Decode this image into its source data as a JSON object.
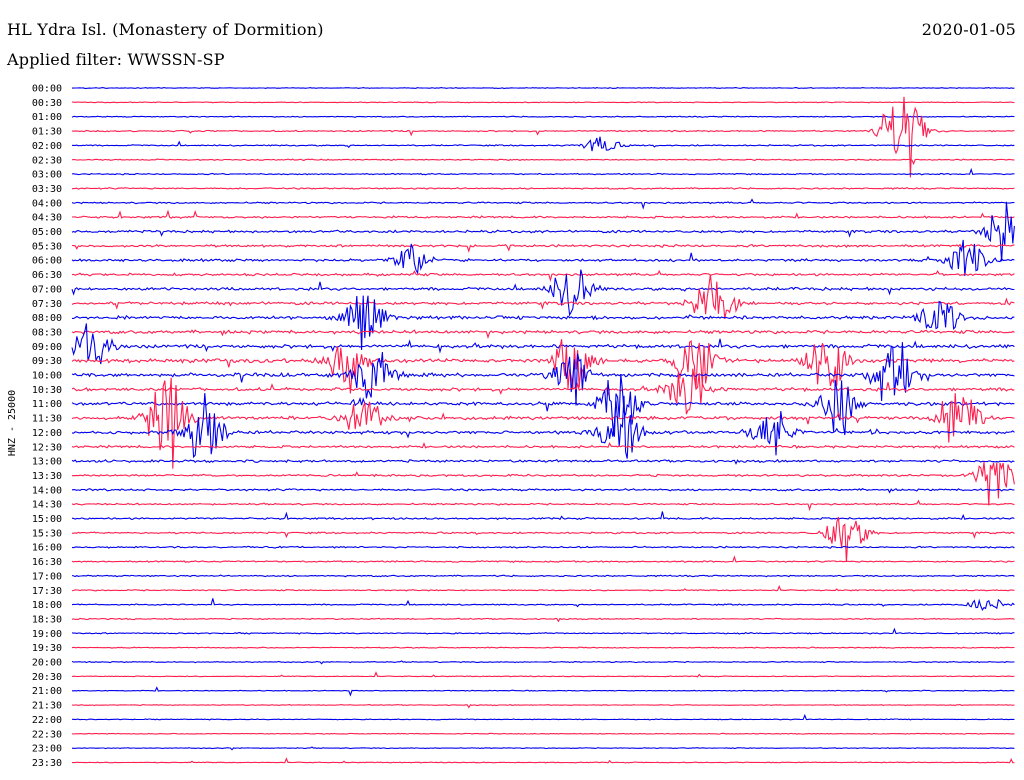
{
  "header": {
    "station": "HL Ydra Isl. (Monastery of Dormition)",
    "filter": "Applied filter: WWSSN-SP",
    "date": "2020-01-05"
  },
  "chart_data": {
    "type": "line",
    "title": "HL Ydra Isl. (Monastery of Dormition)",
    "subtitle": "Applied filter: WWSSN-SP",
    "date": "2020-01-05",
    "ylabel": "HNZ - 25000",
    "row_labels": [
      "00:00",
      "00:30",
      "01:00",
      "01:30",
      "02:00",
      "02:30",
      "03:00",
      "03:30",
      "04:00",
      "04:30",
      "05:00",
      "05:30",
      "06:00",
      "06:30",
      "07:00",
      "07:30",
      "08:00",
      "08:30",
      "09:00",
      "09:30",
      "10:00",
      "10:30",
      "11:00",
      "11:30",
      "12:00",
      "12:30",
      "13:00",
      "13:30",
      "14:00",
      "14:30",
      "15:00",
      "15:30",
      "16:00",
      "16:30",
      "17:00",
      "17:30",
      "18:00",
      "18:30",
      "19:00",
      "19:30",
      "20:00",
      "20:30",
      "21:00",
      "21:30",
      "22:00",
      "22:30",
      "23:00",
      "23:30"
    ],
    "trace_colors": [
      "#0000ee",
      "#ff1f4f"
    ],
    "row_activity": [
      0.2,
      0.2,
      0.25,
      0.35,
      0.3,
      0.3,
      0.3,
      0.35,
      0.4,
      0.5,
      0.6,
      0.6,
      0.6,
      0.6,
      0.7,
      0.7,
      0.8,
      0.8,
      0.9,
      0.9,
      0.9,
      0.8,
      0.8,
      0.8,
      0.8,
      0.6,
      0.6,
      0.5,
      0.5,
      0.4,
      0.45,
      0.4,
      0.4,
      0.35,
      0.35,
      0.3,
      0.3,
      0.3,
      0.3,
      0.25,
      0.25,
      0.2,
      0.2,
      0.2,
      0.2,
      0.2,
      0.2,
      0.2
    ],
    "events": [
      {
        "row": 3,
        "pos": 0.88,
        "amp": 70
      },
      {
        "row": 4,
        "pos": 0.56,
        "amp": 10
      },
      {
        "row": 12,
        "pos": 0.36,
        "amp": 22
      },
      {
        "row": 10,
        "pos": 0.99,
        "amp": 40
      },
      {
        "row": 12,
        "pos": 0.95,
        "amp": 30
      },
      {
        "row": 14,
        "pos": 0.53,
        "amp": 35
      },
      {
        "row": 15,
        "pos": 0.68,
        "amp": 40
      },
      {
        "row": 16,
        "pos": 0.31,
        "amp": 35
      },
      {
        "row": 16,
        "pos": 0.92,
        "amp": 30
      },
      {
        "row": 18,
        "pos": 0.02,
        "amp": 30
      },
      {
        "row": 19,
        "pos": 0.29,
        "amp": 40
      },
      {
        "row": 19,
        "pos": 0.53,
        "amp": 40
      },
      {
        "row": 19,
        "pos": 0.66,
        "amp": 50
      },
      {
        "row": 19,
        "pos": 0.8,
        "amp": 45
      },
      {
        "row": 20,
        "pos": 0.32,
        "amp": 45
      },
      {
        "row": 20,
        "pos": 0.53,
        "amp": 35
      },
      {
        "row": 20,
        "pos": 0.87,
        "amp": 50
      },
      {
        "row": 21,
        "pos": 0.65,
        "amp": 40
      },
      {
        "row": 22,
        "pos": 0.58,
        "amp": 45
      },
      {
        "row": 22,
        "pos": 0.81,
        "amp": 40
      },
      {
        "row": 23,
        "pos": 0.1,
        "amp": 70
      },
      {
        "row": 23,
        "pos": 0.31,
        "amp": 35
      },
      {
        "row": 23,
        "pos": 0.94,
        "amp": 45
      },
      {
        "row": 24,
        "pos": 0.14,
        "amp": 40
      },
      {
        "row": 24,
        "pos": 0.58,
        "amp": 50
      },
      {
        "row": 24,
        "pos": 0.74,
        "amp": 35
      },
      {
        "row": 27,
        "pos": 0.98,
        "amp": 40
      },
      {
        "row": 31,
        "pos": 0.82,
        "amp": 35
      },
      {
        "row": 36,
        "pos": 0.97,
        "amp": 8
      }
    ]
  }
}
